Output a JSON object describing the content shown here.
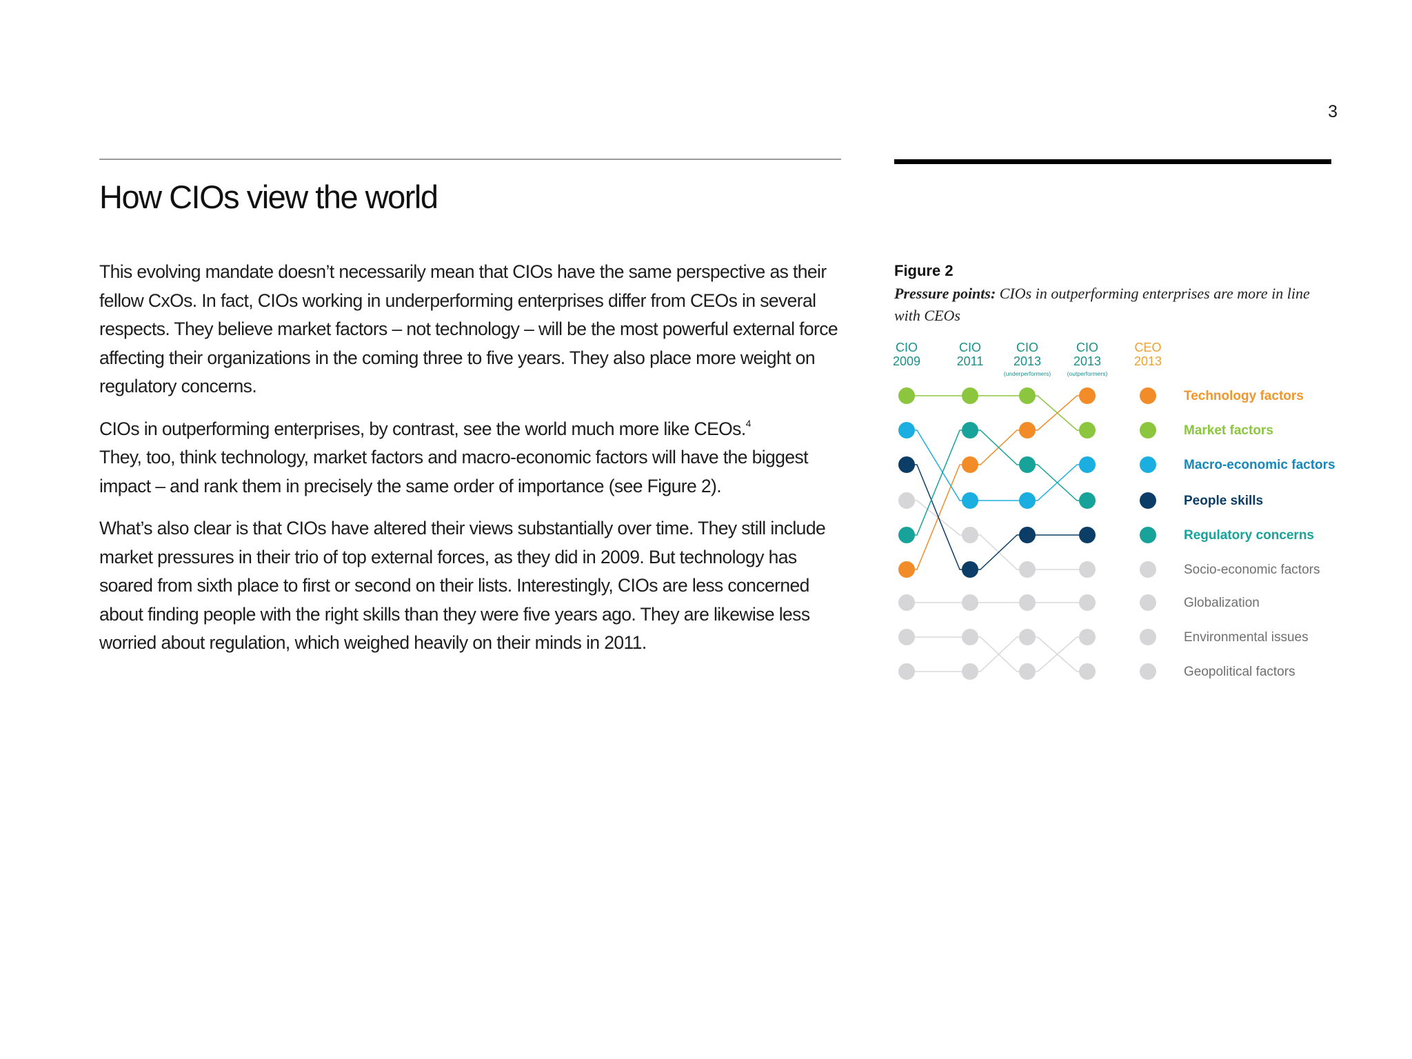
{
  "page_number": "3",
  "title": "How CIOs view the world",
  "paragraphs": {
    "p1": "This evolving mandate doesn’t necessarily mean that CIOs have the same perspective as their fellow CxOs. In fact, CIOs working in underperforming enterprises differ from CEOs in several respects. They believe market factors – not technology – will be the most powerful external force affecting their organizations in the coming three to five years. They also place more weight on regulatory concerns.",
    "p2_text": "CIOs in outperforming enterprises, by contrast, see the world much more like CEOs.",
    "p2_footnote": "4",
    "p2_rest": "They, too, think technology, market factors and macro-economic factors will have the biggest impact – and rank them in precisely the same order of importance (see Figure 2).",
    "p3": "What’s also clear is that CIOs have altered their views substantially over time. They still include market pressures in their trio of top external forces, as they did in 2009. But technology has soared from sixth place to first or second on their lists. Interestingly, CIOs are less concerned about finding people with the right skills than they were five years ago. They are likewise less worried about regulation, which weighed heavily on their minds in 2011."
  },
  "figure": {
    "label": "Figure 2",
    "caption_bold": "Pressure points:",
    "caption_rest": " CIOs in outperforming enterprises are more in line with CEOs"
  },
  "chart_data": {
    "type": "bump",
    "columns": [
      {
        "line1": "CIO",
        "line2": "2009",
        "sub": "",
        "color": "#1a8f8a"
      },
      {
        "line1": "CIO",
        "line2": "2011",
        "sub": "",
        "color": "#1a8f8a"
      },
      {
        "line1": "CIO",
        "line2": "2013",
        "sub": "(underperformers)",
        "color": "#1a8f8a"
      },
      {
        "line1": "CIO",
        "line2": "2013",
        "sub": "(outperformers)",
        "color": "#1a8f8a"
      },
      {
        "line1": "CEO",
        "line2": "2013",
        "sub": "",
        "color": "#f0a030"
      }
    ],
    "factors": [
      {
        "name": "Technology factors",
        "color": "#f28c28",
        "label_color": "#f0962a",
        "bold": true,
        "ranks": [
          6,
          3,
          2,
          1,
          1
        ]
      },
      {
        "name": "Market factors",
        "color": "#8cc63f",
        "label_color": "#8cc63f",
        "bold": true,
        "ranks": [
          1,
          1,
          1,
          2,
          2
        ]
      },
      {
        "name": "Macro-economic factors",
        "color": "#1aafe0",
        "label_color": "#1788be",
        "bold": true,
        "ranks": [
          2,
          4,
          4,
          3,
          3
        ]
      },
      {
        "name": "People skills",
        "color": "#0b3d66",
        "label_color": "#0b3d66",
        "bold": true,
        "ranks": [
          3,
          6,
          5,
          5,
          4
        ]
      },
      {
        "name": "Regulatory concerns",
        "color": "#17a399",
        "label_color": "#17a399",
        "bold": true,
        "ranks": [
          5,
          2,
          3,
          4,
          5
        ]
      },
      {
        "name": "Socio-economic factors",
        "color": "#d6d6d8",
        "label_color": "#707070",
        "bold": false,
        "ranks": [
          4,
          5,
          6,
          6,
          6
        ]
      },
      {
        "name": "Globalization",
        "color": "#d6d6d8",
        "label_color": "#707070",
        "bold": false,
        "ranks": [
          7,
          7,
          7,
          7,
          7
        ]
      },
      {
        "name": "Environmental issues",
        "color": "#d6d6d8",
        "label_color": "#707070",
        "bold": false,
        "ranks": [
          8,
          8,
          9,
          8,
          8
        ]
      },
      {
        "name": "Geopolitical factors",
        "color": "#d6d6d8",
        "label_color": "#707070",
        "bold": false,
        "ranks": [
          9,
          9,
          8,
          9,
          9
        ]
      }
    ]
  }
}
